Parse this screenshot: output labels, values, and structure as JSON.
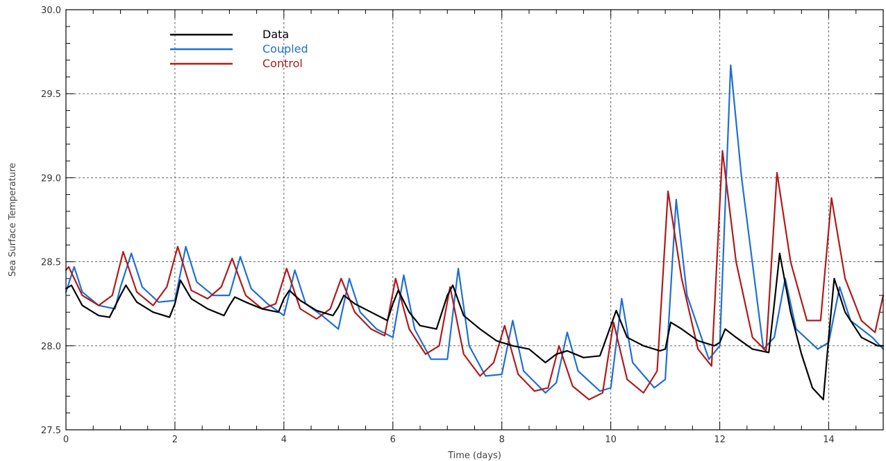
{
  "chart_data": {
    "type": "line",
    "title": "",
    "xlabel": "Time (days)",
    "ylabel": "Sea Surface Temperature",
    "xlim": [
      0,
      15
    ],
    "ylim": [
      27.5,
      30.0
    ],
    "x_ticks": [
      0,
      2,
      4,
      6,
      8,
      10,
      12,
      14
    ],
    "x_tick_labels": [
      "0",
      "2",
      "4",
      "6",
      "8",
      "10",
      "12",
      "14"
    ],
    "y_ticks": [
      27.5,
      28.0,
      28.5,
      29.0,
      29.5,
      30.0
    ],
    "y_tick_labels": [
      "27.5",
      "28.0",
      "28.5",
      "29.0",
      "29.5",
      "30.0"
    ],
    "grid": true,
    "legend_position": "top-left",
    "series": [
      {
        "name": "Data",
        "color": "#000000",
        "x": [
          0,
          0.1,
          0.3,
          0.6,
          0.8,
          1.0,
          1.1,
          1.3,
          1.6,
          1.9,
          2.0,
          2.1,
          2.3,
          2.6,
          2.9,
          3.0,
          3.1,
          3.3,
          3.6,
          3.9,
          4.0,
          4.1,
          4.3,
          4.6,
          4.9,
          5.0,
          5.1,
          5.3,
          5.6,
          5.9,
          6.0,
          6.1,
          6.3,
          6.5,
          6.8,
          7.0,
          7.1,
          7.3,
          7.6,
          7.9,
          8.0,
          8.2,
          8.5,
          8.8,
          9.0,
          9.2,
          9.5,
          9.8,
          10.0,
          10.1,
          10.3,
          10.6,
          10.9,
          11.0,
          11.1,
          11.3,
          11.6,
          11.9,
          12.0,
          12.1,
          12.3,
          12.6,
          12.9,
          13.0,
          13.1,
          13.3,
          13.5,
          13.7,
          13.9,
          14.0,
          14.1,
          14.3,
          14.6,
          14.9,
          15.0
        ],
        "values": [
          28.34,
          28.36,
          28.24,
          28.18,
          28.17,
          28.3,
          28.36,
          28.26,
          28.2,
          28.17,
          28.25,
          28.39,
          28.28,
          28.22,
          28.18,
          28.24,
          28.29,
          28.26,
          28.22,
          28.2,
          28.28,
          28.33,
          28.27,
          28.21,
          28.18,
          28.23,
          28.3,
          28.25,
          28.2,
          28.15,
          28.25,
          28.33,
          28.2,
          28.12,
          28.1,
          28.3,
          28.36,
          28.18,
          28.1,
          28.03,
          28.02,
          28.0,
          27.98,
          27.9,
          27.95,
          27.97,
          27.93,
          27.94,
          28.12,
          28.21,
          28.05,
          28.0,
          27.97,
          27.98,
          28.14,
          28.1,
          28.03,
          28.0,
          28.02,
          28.1,
          28.05,
          27.98,
          27.96,
          28.25,
          28.55,
          28.2,
          27.95,
          27.75,
          27.68,
          28.05,
          28.4,
          28.2,
          28.05,
          28.0,
          28.0
        ]
      },
      {
        "name": "Coupled",
        "color": "#1f6fd0",
        "x": [
          0,
          0.15,
          0.3,
          0.6,
          0.9,
          1.0,
          1.2,
          1.4,
          1.7,
          2.0,
          2.2,
          2.4,
          2.7,
          3.0,
          3.2,
          3.4,
          3.7,
          4.0,
          4.2,
          4.4,
          4.7,
          5.0,
          5.2,
          5.4,
          5.7,
          6.0,
          6.2,
          6.4,
          6.7,
          7.0,
          7.2,
          7.4,
          7.7,
          8.0,
          8.2,
          8.4,
          8.8,
          9.0,
          9.2,
          9.4,
          9.8,
          10.0,
          10.2,
          10.4,
          10.8,
          11.0,
          11.2,
          11.4,
          11.8,
          12.0,
          12.2,
          12.4,
          12.8,
          13.0,
          13.2,
          13.4,
          13.8,
          14.0,
          14.2,
          14.4,
          14.8,
          15.0
        ],
        "values": [
          28.32,
          28.47,
          28.32,
          28.24,
          28.22,
          28.35,
          28.55,
          28.35,
          28.26,
          28.27,
          28.59,
          28.38,
          28.3,
          28.3,
          28.53,
          28.34,
          28.25,
          28.18,
          28.45,
          28.25,
          28.18,
          28.1,
          28.4,
          28.2,
          28.1,
          28.05,
          28.42,
          28.1,
          27.92,
          27.92,
          28.46,
          28.0,
          27.82,
          27.83,
          28.15,
          27.85,
          27.72,
          27.78,
          28.08,
          27.85,
          27.73,
          27.75,
          28.28,
          27.9,
          27.75,
          27.8,
          28.87,
          28.3,
          27.92,
          28.0,
          29.67,
          29.0,
          27.98,
          28.05,
          28.4,
          28.1,
          27.98,
          28.02,
          28.35,
          28.15,
          28.05,
          27.98
        ]
      },
      {
        "name": "Control",
        "color": "#b01a1a",
        "x": [
          0,
          0.05,
          0.3,
          0.6,
          0.85,
          1.05,
          1.3,
          1.6,
          1.85,
          2.05,
          2.3,
          2.6,
          2.85,
          3.05,
          3.3,
          3.6,
          3.85,
          4.05,
          4.3,
          4.6,
          4.85,
          5.05,
          5.3,
          5.6,
          5.85,
          6.05,
          6.3,
          6.6,
          6.85,
          7.05,
          7.3,
          7.6,
          7.85,
          8.05,
          8.3,
          8.6,
          8.85,
          9.05,
          9.3,
          9.6,
          9.85,
          10.05,
          10.3,
          10.6,
          10.85,
          11.05,
          11.3,
          11.6,
          11.85,
          12.05,
          12.3,
          12.6,
          12.85,
          13.05,
          13.3,
          13.6,
          13.85,
          14.05,
          14.3,
          14.6,
          14.85,
          15.0
        ],
        "values": [
          28.45,
          28.47,
          28.3,
          28.24,
          28.3,
          28.56,
          28.32,
          28.24,
          28.35,
          28.59,
          28.33,
          28.28,
          28.35,
          28.52,
          28.3,
          28.22,
          28.25,
          28.46,
          28.22,
          28.16,
          28.22,
          28.4,
          28.2,
          28.1,
          28.06,
          28.4,
          28.1,
          27.95,
          28.0,
          28.35,
          27.95,
          27.82,
          27.9,
          28.12,
          27.83,
          27.73,
          27.75,
          28.0,
          27.76,
          27.68,
          27.72,
          28.14,
          27.8,
          27.72,
          27.85,
          28.92,
          28.4,
          27.98,
          27.88,
          29.16,
          28.5,
          28.05,
          27.97,
          29.03,
          28.5,
          28.15,
          28.15,
          28.88,
          28.4,
          28.15,
          28.08,
          28.3
        ]
      }
    ]
  }
}
